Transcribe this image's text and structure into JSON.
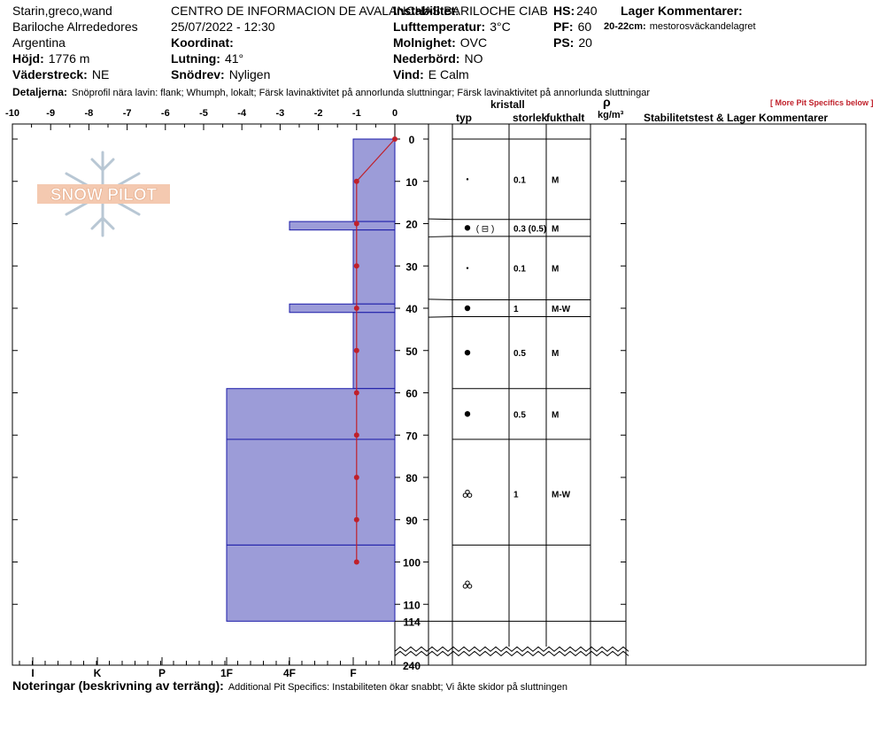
{
  "header": {
    "observer": "Starin,greco,wand",
    "location": "Bariloche Alrrededores",
    "country": "Argentina",
    "elevation_label": "Höjd:",
    "elevation_value": "1776 m",
    "aspect_label": "Väderstreck:",
    "aspect_value": "NE",
    "organization": "CENTRO DE INFORMACION DE AVALANCHAS BARILOCHE CIAB",
    "datetime": "25/07/2022 - 12:30",
    "coord_label": "Koordinat:",
    "slope_label": "Lutning:",
    "slope_value": "41°",
    "snowfall_label": "Snödrev:",
    "snowfall_value": "Nyligen",
    "stability_label": "Instabilitet:",
    "air_temp_label": "Lufttemperatur:",
    "air_temp_value": "3°C",
    "sky_label": "Molnighet:",
    "sky_value": "OVC",
    "precip_label": "Nederbörd:",
    "precip_value": "NO",
    "wind_label": "Vind:",
    "wind_value": "E Calm",
    "hs_label": "HS:",
    "hs_value": "240",
    "pf_label": "PF:",
    "pf_value": "60",
    "ps_label": "PS:",
    "ps_value": "20",
    "layer_comments_title": "Lager Kommentarer:",
    "layer_comment_range": "20-22cm:",
    "layer_comment_text": "mestorosväckandelagret",
    "details_label": "Detaljerna:",
    "details_text": "Snöprofil nära lavin: flank; Whumph, lokalt; Färsk lavinaktivitet på annorlunda sluttningar; Färsk lavinaktivitet på annorlunda sluttningar",
    "more_link": "[ More Pit Specifics below ]"
  },
  "table_headers": {
    "crystal": "kristall",
    "type": "typ",
    "size": "storlek",
    "moisture": "fukthalt",
    "rho": "ρ",
    "density_unit": "kg/m³",
    "stability": "Stabilitetstest & Lager Kommentarer"
  },
  "footer": {
    "notes_label": "Noteringar (beskrivning av terräng):",
    "notes_text": "Additional Pit Specifics: Instabiliteten ökar snabbt; Vi åkte skidor på sluttningen"
  },
  "logo_text": "SNOW PILOT",
  "colors": {
    "hardness_fill": "#9c9cd8",
    "hardness_line": "#1a1aa8",
    "temp_line": "#c0202a"
  },
  "chart_data": {
    "type": "snow-profile",
    "temp_axis": {
      "ticks": [
        "-10",
        "-9",
        "-8",
        "-7",
        "-6",
        "-5",
        "-4",
        "-3",
        "-2",
        "-1",
        "0"
      ],
      "range": [
        -10,
        0
      ]
    },
    "hardness_axis": {
      "ticks": [
        "I",
        "K",
        "P",
        "1F",
        "4F",
        "F"
      ]
    },
    "depth_ticks": [
      "0",
      "10",
      "20",
      "30",
      "40",
      "50",
      "60",
      "70",
      "80",
      "90",
      "100",
      "110",
      "114",
      "240"
    ],
    "depth_range_cm": [
      0,
      114
    ],
    "total_depth_cm": 240,
    "temperature_profile": [
      {
        "depth": 0,
        "temp": 0
      },
      {
        "depth": 10,
        "temp": -1
      },
      {
        "depth": 20,
        "temp": -1
      },
      {
        "depth": 30,
        "temp": -1
      },
      {
        "depth": 40,
        "temp": -1
      },
      {
        "depth": 50,
        "temp": -1
      },
      {
        "depth": 60,
        "temp": -1
      },
      {
        "depth": 70,
        "temp": -1
      },
      {
        "depth": 80,
        "temp": -1
      },
      {
        "depth": 90,
        "temp": -1
      },
      {
        "depth": 100,
        "temp": -1
      }
    ],
    "hardness_layers": [
      {
        "top": 0,
        "bottom": 19.5,
        "hardness": "F"
      },
      {
        "top": 19.5,
        "bottom": 21.5,
        "hardness": "4F"
      },
      {
        "top": 21.5,
        "bottom": 39,
        "hardness": "F"
      },
      {
        "top": 39,
        "bottom": 41,
        "hardness": "4F"
      },
      {
        "top": 41,
        "bottom": 59,
        "hardness": "F"
      },
      {
        "top": 59,
        "bottom": 71,
        "hardness": "1F"
      },
      {
        "top": 71,
        "bottom": 96,
        "hardness": "1F"
      },
      {
        "top": 96,
        "bottom": 114,
        "hardness": "1F"
      }
    ],
    "layers": [
      {
        "top": 0,
        "bottom": 19,
        "crystal": "small-dot",
        "size": "0.1",
        "moisture": "M"
      },
      {
        "top": 19,
        "bottom": 23,
        "crystal": "dot",
        "crystal_extra": "( ⊟ )",
        "size": "0.3 (0.5)",
        "moisture": "M"
      },
      {
        "top": 23,
        "bottom": 38,
        "crystal": "small-dot",
        "size": "0.1",
        "moisture": "M"
      },
      {
        "top": 38,
        "bottom": 42,
        "crystal": "dot",
        "size": "1",
        "moisture": "M-W"
      },
      {
        "top": 42,
        "bottom": 59,
        "crystal": "dot",
        "size": "0.5",
        "moisture": "M"
      },
      {
        "top": 59,
        "bottom": 71,
        "crystal": "dot",
        "size": "0.5",
        "moisture": "M"
      },
      {
        "top": 71,
        "bottom": 96,
        "crystal": "cluster",
        "size": "1",
        "moisture": "M-W"
      },
      {
        "top": 96,
        "bottom": 114,
        "crystal": "cluster",
        "size": "",
        "moisture": ""
      }
    ]
  }
}
